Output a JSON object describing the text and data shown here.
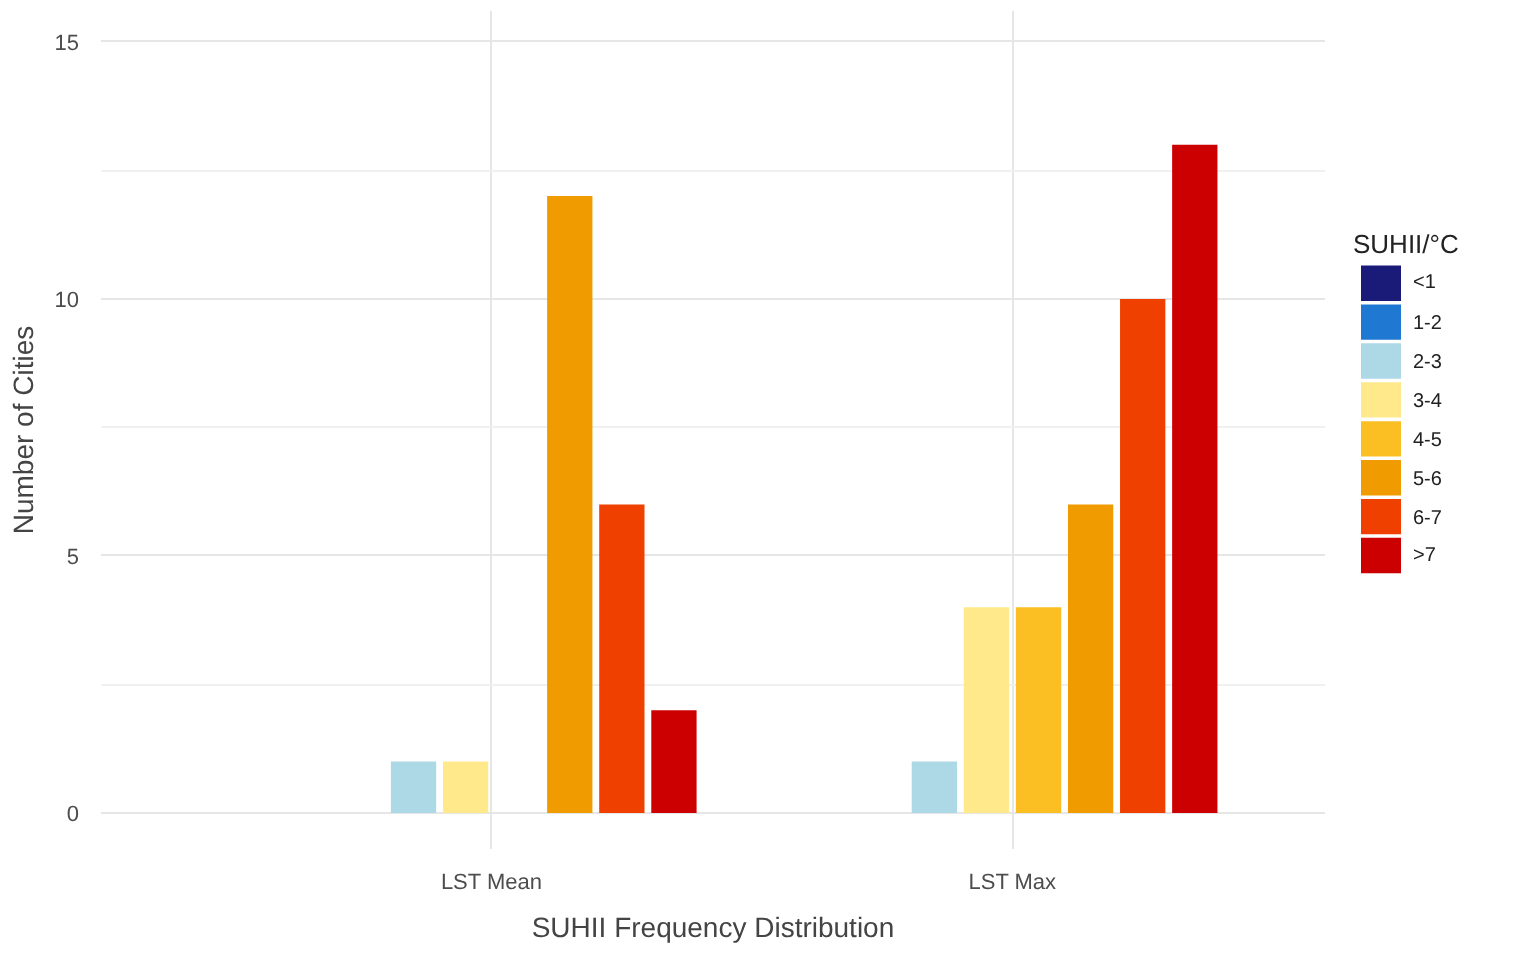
{
  "chart_data": {
    "type": "bar",
    "xlabel": "SUHII Frequency Distribution",
    "ylabel": "Number of Cities",
    "legend_title": "SUHII/°C",
    "categories": [
      "LST Mean",
      "LST Max"
    ],
    "series": [
      {
        "name": "<1",
        "color": "#1a1a78",
        "values": [
          null,
          null
        ]
      },
      {
        "name": "1-2",
        "color": "#1f78d1",
        "values": [
          null,
          null
        ]
      },
      {
        "name": "2-3",
        "color": "#add8e6",
        "values": [
          1,
          1
        ]
      },
      {
        "name": "3-4",
        "color": "#ffe98a",
        "values": [
          1,
          4
        ]
      },
      {
        "name": "4-5",
        "color": "#fbbf24",
        "values": [
          null,
          4
        ]
      },
      {
        "name": "5-6",
        "color": "#f09c00",
        "values": [
          12,
          6
        ]
      },
      {
        "name": "6-7",
        "color": "#ef4000",
        "values": [
          6,
          10
        ]
      },
      {
        "name": ">7",
        "color": "#cc0000",
        "values": [
          2,
          13
        ]
      }
    ],
    "ylim": [
      -0.7,
      15.6
    ],
    "yticks": [
      0,
      5,
      10,
      15
    ],
    "grid": true,
    "legend": "right"
  }
}
